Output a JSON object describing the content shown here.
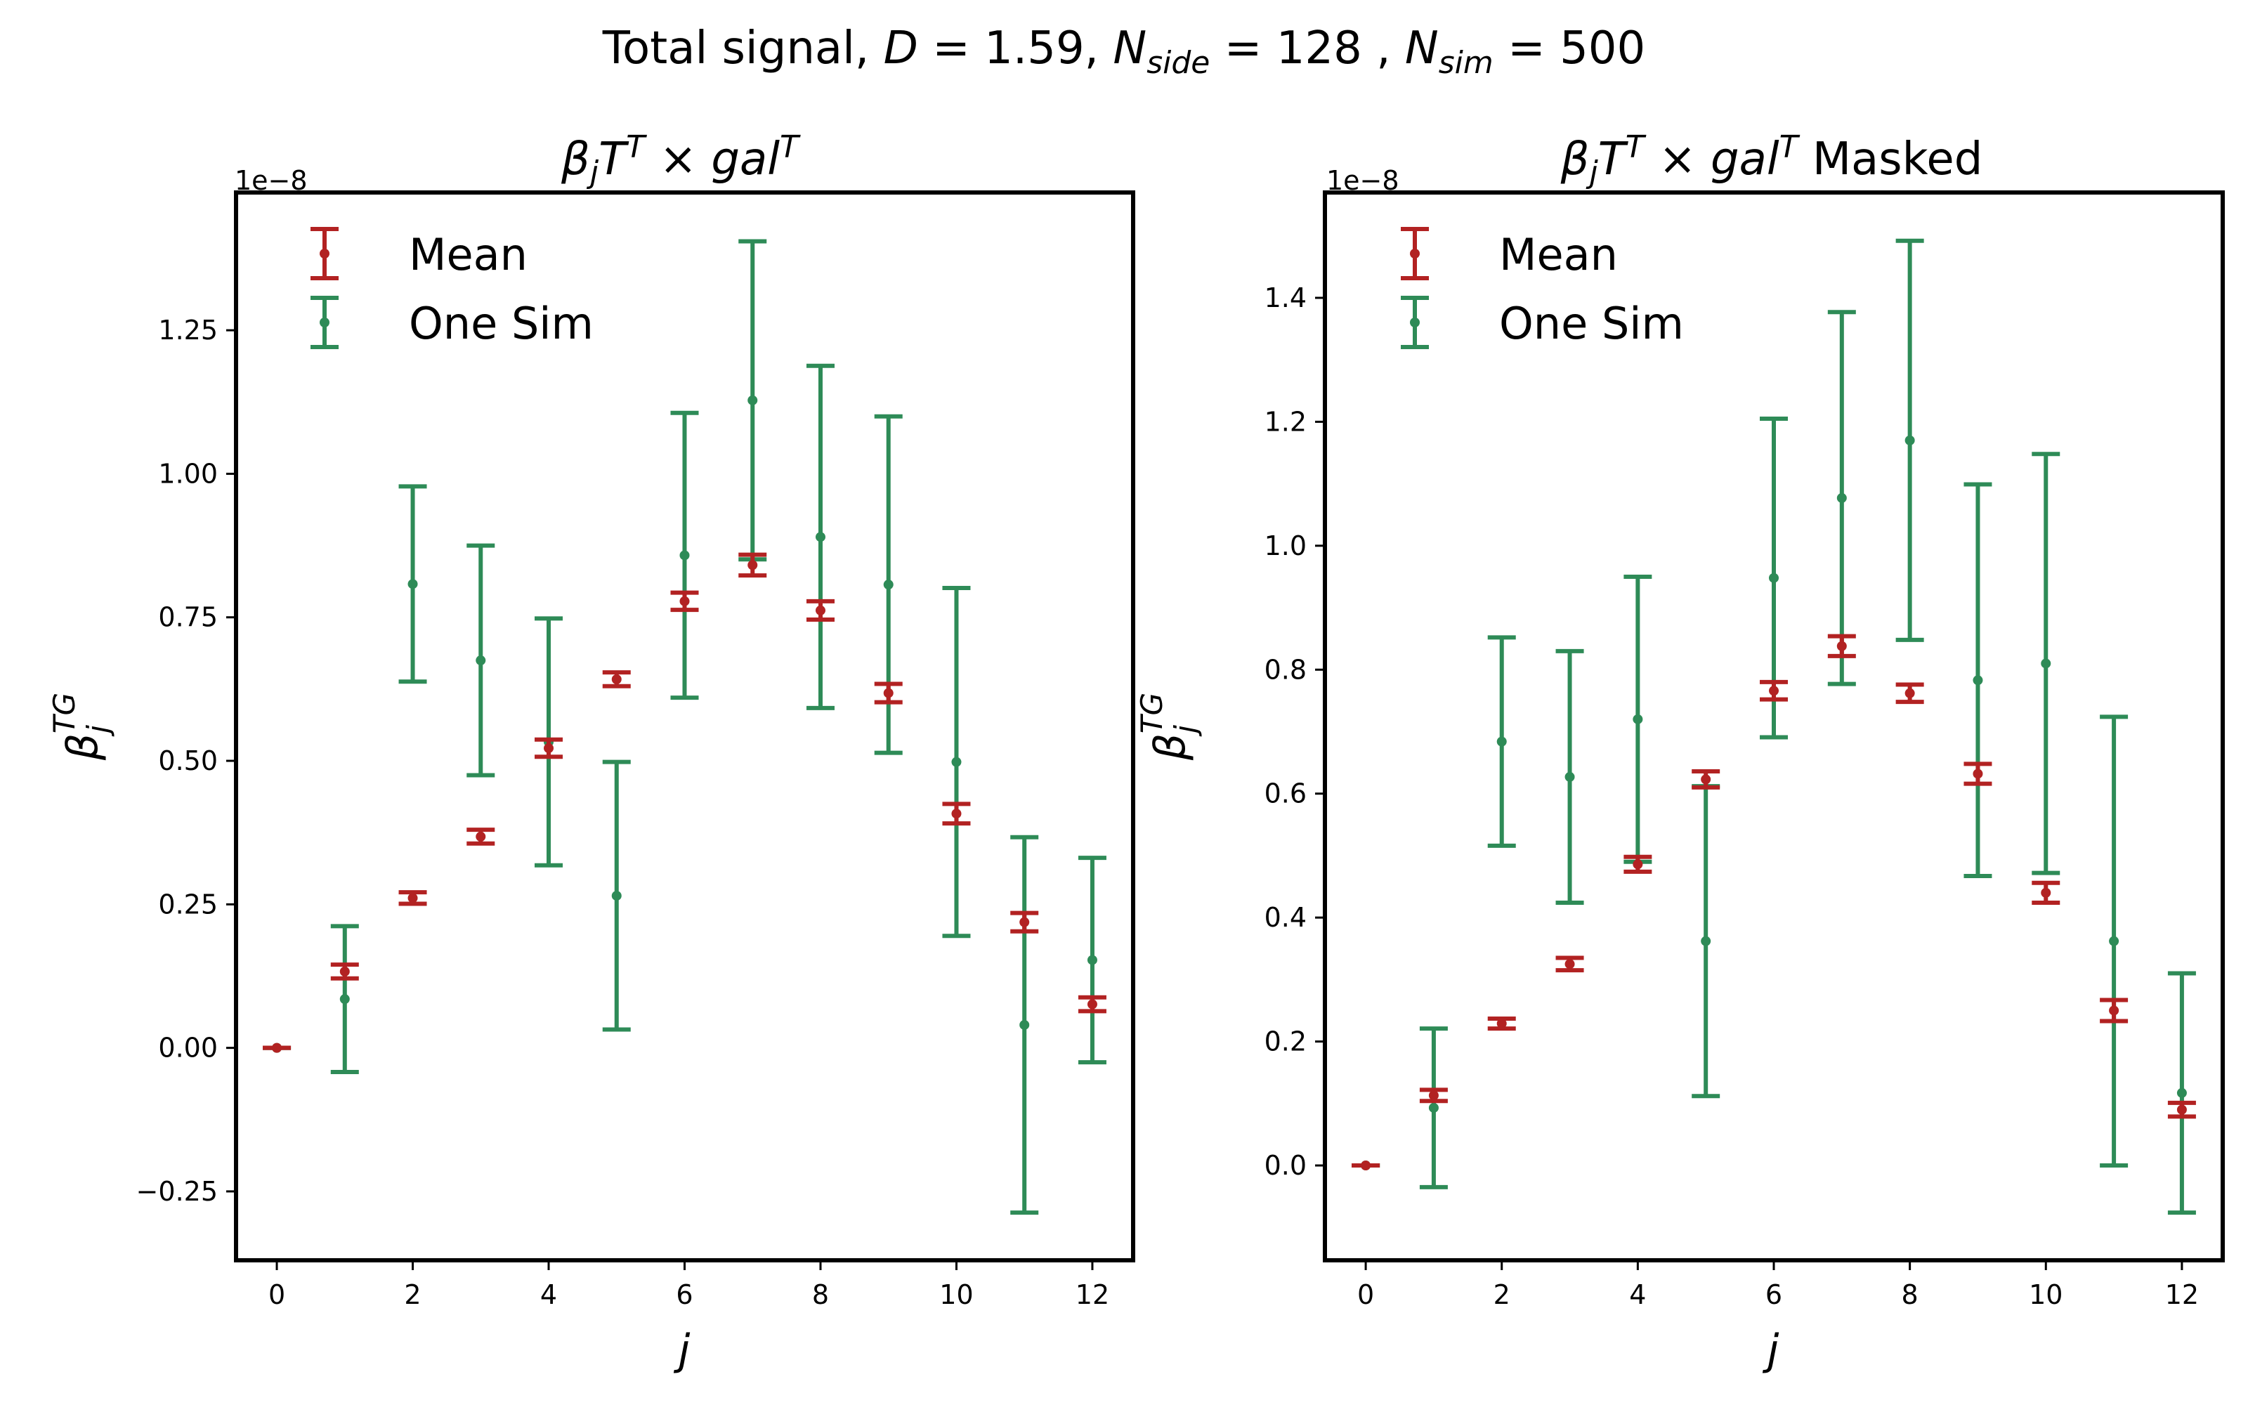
{
  "figure": {
    "title_parts": {
      "prefix": "Total signal, ",
      "D_sym": "D",
      "D_eq": " = 1.59,  ",
      "N1_sym": "N",
      "N1_sub": "side",
      "N1_eq": " = 128 ,  ",
      "N2_sym": "N",
      "N2_sub": "sim",
      "N2_eq": " = 500"
    }
  },
  "colors": {
    "mean": "#b22222",
    "one_sim": "#2e8b57",
    "axes": "#000000"
  },
  "chart_data": [
    {
      "type": "errorbar",
      "title_parts": {
        "beta": "β",
        "beta_sub": "j",
        "T": "T",
        "T_sup": "T",
        "times": " × ",
        "gal": "gal",
        "gal_sup": "T",
        "suffix": ""
      },
      "xlabel": "j",
      "ylabel": "β",
      "ylabel_sub": "j",
      "ylabel_sup": "TG",
      "y_offset_label": "1e−8",
      "xlim": [
        -0.6,
        12.6
      ],
      "ylim": [
        -0.37,
        1.49
      ],
      "xticks": [
        0,
        2,
        4,
        6,
        8,
        10,
        12
      ],
      "xtick_labels": [
        "0",
        "2",
        "4",
        "6",
        "8",
        "10",
        "12"
      ],
      "yticks": [
        -0.25,
        0.0,
        0.25,
        0.5,
        0.75,
        1.0,
        1.25
      ],
      "ytick_labels": [
        "−0.25",
        "0.00",
        "0.25",
        "0.50",
        "0.75",
        "1.00",
        "1.25"
      ],
      "legend": {
        "placement": "top-left",
        "entries": [
          "Mean",
          "One Sim"
        ]
      },
      "series": [
        {
          "name": "Mean",
          "x": [
            0,
            1,
            2,
            3,
            4,
            5,
            6,
            7,
            8,
            9,
            10,
            11,
            12
          ],
          "y": [
            0.0,
            0.133,
            0.261,
            0.368,
            0.522,
            0.642,
            0.778,
            0.841,
            0.762,
            0.618,
            0.408,
            0.219,
            0.076
          ],
          "yerr": [
            0.0,
            0.012,
            0.01,
            0.012,
            0.015,
            0.012,
            0.015,
            0.018,
            0.016,
            0.016,
            0.017,
            0.016,
            0.012
          ]
        },
        {
          "name": "One Sim",
          "x": [
            0,
            1,
            2,
            3,
            4,
            5,
            6,
            7,
            8,
            9,
            10,
            11,
            12
          ],
          "y": [
            0.0,
            0.085,
            0.808,
            0.675,
            0.533,
            0.265,
            0.858,
            1.128,
            0.89,
            0.807,
            0.498,
            0.04,
            0.153
          ],
          "yerr": [
            0.0,
            0.127,
            0.17,
            0.2,
            0.215,
            0.233,
            0.248,
            0.277,
            0.298,
            0.293,
            0.303,
            0.327,
            0.178
          ]
        }
      ]
    },
    {
      "type": "errorbar",
      "title_parts": {
        "beta": "β",
        "beta_sub": "j",
        "T": "T",
        "T_sup": "T",
        "times": " × ",
        "gal": "gal",
        "gal_sup": "T",
        "suffix": " Masked"
      },
      "xlabel": "j",
      "ylabel": "β",
      "ylabel_sub": "j",
      "ylabel_sup": "TG",
      "y_offset_label": "1e−8",
      "xlim": [
        -0.6,
        12.6
      ],
      "ylim": [
        -0.153,
        1.57
      ],
      "xticks": [
        0,
        2,
        4,
        6,
        8,
        10,
        12
      ],
      "xtick_labels": [
        "0",
        "2",
        "4",
        "6",
        "8",
        "10",
        "12"
      ],
      "yticks": [
        0.0,
        0.2,
        0.4,
        0.6,
        0.8,
        1.0,
        1.2,
        1.4
      ],
      "ytick_labels": [
        "0.0",
        "0.2",
        "0.4",
        "0.6",
        "0.8",
        "1.0",
        "1.2",
        "1.4"
      ],
      "legend": {
        "placement": "top-left",
        "entries": [
          "Mean",
          "One Sim"
        ]
      },
      "series": [
        {
          "name": "Mean",
          "x": [
            0,
            1,
            2,
            3,
            4,
            5,
            6,
            7,
            8,
            9,
            10,
            11,
            12
          ],
          "y": [
            0.0,
            0.113,
            0.229,
            0.325,
            0.486,
            0.623,
            0.766,
            0.838,
            0.762,
            0.632,
            0.44,
            0.25,
            0.09
          ],
          "yerr": [
            0.0,
            0.009,
            0.008,
            0.01,
            0.012,
            0.013,
            0.014,
            0.016,
            0.014,
            0.016,
            0.016,
            0.017,
            0.011
          ]
        },
        {
          "name": "One Sim",
          "x": [
            0,
            1,
            2,
            3,
            4,
            5,
            6,
            7,
            8,
            9,
            10,
            11,
            12
          ],
          "y": [
            0.0,
            0.093,
            0.684,
            0.627,
            0.72,
            0.362,
            0.948,
            1.077,
            1.17,
            0.783,
            0.81,
            0.362,
            0.117
          ],
          "yerr": [
            0.0,
            0.128,
            0.168,
            0.203,
            0.23,
            0.25,
            0.257,
            0.3,
            0.322,
            0.316,
            0.338,
            0.362,
            0.193
          ]
        }
      ]
    }
  ]
}
